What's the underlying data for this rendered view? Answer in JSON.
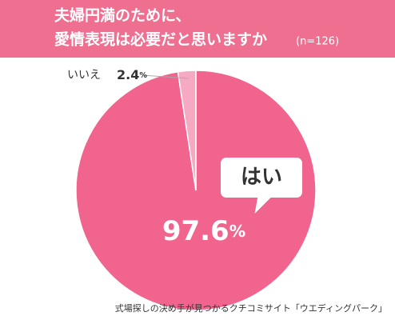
{
  "chart_data": {
    "type": "pie",
    "title": [
      "夫婦円満のために、",
      "愛情表現は必要だと思いますか"
    ],
    "subtitle": "(n=126)",
    "categories": [
      "はい",
      "いいえ"
    ],
    "values": [
      97.6,
      2.4
    ],
    "value_labels": [
      "97.6%",
      "2.4%"
    ],
    "colors": [
      "#f0648e",
      "#f5a9c2"
    ],
    "source": "式場探しの決め手が見つかるクチコミサイト「ウエディングパーク」"
  }
}
